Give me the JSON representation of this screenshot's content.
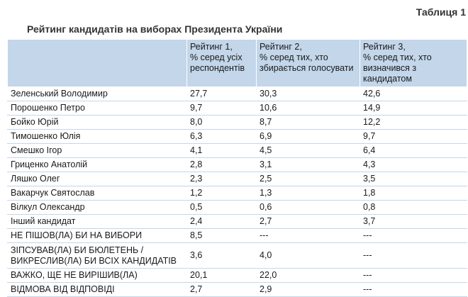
{
  "table_number": "Таблиця 1",
  "table_title": "Рейтинг кандидатів на виборах Президента України",
  "headers": [
    "",
    "Рейтинг 1,\n% серед усіх респондентів",
    "Рейтинг 2,\n% серед тих, хто збирається голосувати",
    "Рейтинг 3,\n% серед тих, хто визначився з кандидатом"
  ],
  "rows": [
    [
      "Зеленський Володимир",
      "27,7",
      "30,3",
      "42,6"
    ],
    [
      "Порошенко Петро",
      "9,7",
      "10,6",
      "14,9"
    ],
    [
      "Бойко Юрій",
      "8,0",
      "8,7",
      "12,2"
    ],
    [
      "Тимошенко Юлія",
      "6,3",
      "6,9",
      "9,7"
    ],
    [
      "Смешко Ігор",
      "4,1",
      "4,5",
      "6,4"
    ],
    [
      "Гриценко Анатолій",
      "2,8",
      "3,1",
      "4,3"
    ],
    [
      "Ляшко Олег",
      "2,3",
      "2,5",
      "3,5"
    ],
    [
      "Вакарчук Святослав",
      "1,2",
      "1,3",
      "1,8"
    ],
    [
      "Вілкул Олександр",
      "0,5",
      "0,6",
      "0,8"
    ],
    [
      "Інший кандидат",
      "2,4",
      "2,7",
      "3,7"
    ],
    [
      "НЕ ПІШОВ(ЛА) БИ НА ВИБОРИ",
      "8,5",
      "---",
      "---"
    ],
    [
      "ЗІПСУВАВ(ЛА) БИ БЮЛЕТЕНЬ / ВИКРЕСЛИВ(ЛА) БИ ВСІХ КАНДИДАТІВ",
      "3,6",
      "4,0",
      "---"
    ],
    [
      "ВАЖКО, ЩЕ НЕ ВИРІШИВ(ЛА)",
      "20,1",
      "22,0",
      "---"
    ],
    [
      "ВІДМОВА ВІД ВІДПОВІДІ",
      "2,7",
      "2,9",
      "---"
    ]
  ]
}
